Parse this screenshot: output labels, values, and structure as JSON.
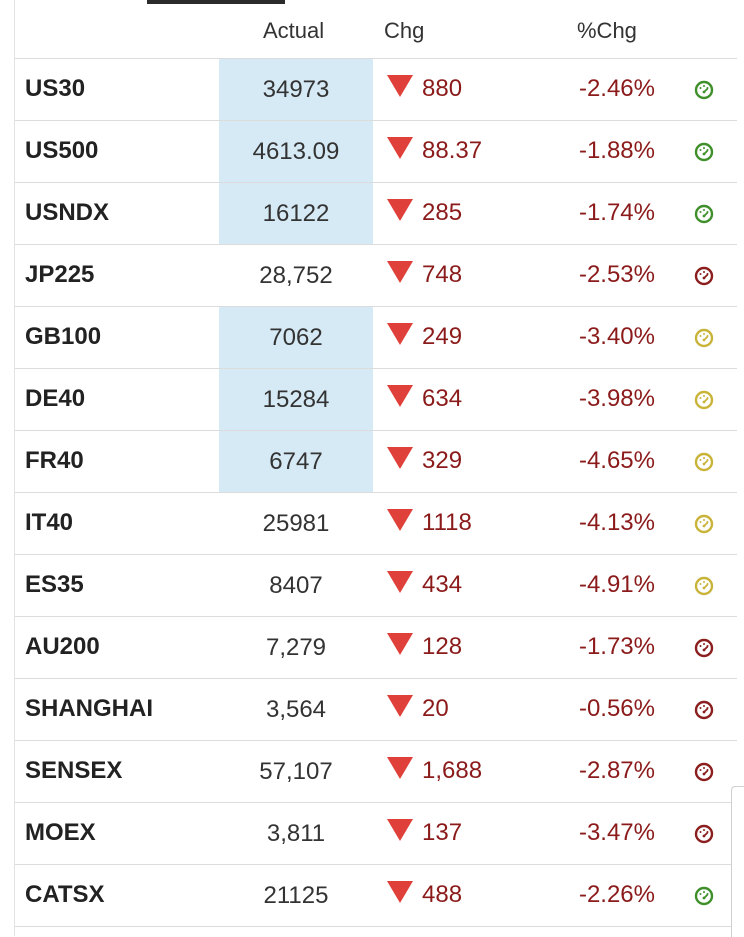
{
  "header": {
    "actual": "Actual",
    "chg": "Chg",
    "pct_chg": "%Chg"
  },
  "colors": {
    "down": "#8b1a1a",
    "arrow": "#e0403a",
    "highlight": "#d6eaf5",
    "gauge_green": "#3f8f2b",
    "gauge_red": "#8b1e1e",
    "gauge_yellow": "#c9b43a"
  },
  "rows": [
    {
      "name": "US30",
      "actual": "34973",
      "chg": "880",
      "pct": "-2.46%",
      "highlight": true,
      "gauge": "green"
    },
    {
      "name": "US500",
      "actual": "4613.09",
      "chg": "88.37",
      "pct": "-1.88%",
      "highlight": true,
      "gauge": "green"
    },
    {
      "name": "USNDX",
      "actual": "16122",
      "chg": "285",
      "pct": "-1.74%",
      "highlight": true,
      "gauge": "green"
    },
    {
      "name": "JP225",
      "actual": "28,752",
      "chg": "748",
      "pct": "-2.53%",
      "highlight": false,
      "gauge": "red"
    },
    {
      "name": "GB100",
      "actual": "7062",
      "chg": "249",
      "pct": "-3.40%",
      "highlight": true,
      "gauge": "yellow"
    },
    {
      "name": "DE40",
      "actual": "15284",
      "chg": "634",
      "pct": "-3.98%",
      "highlight": true,
      "gauge": "yellow"
    },
    {
      "name": "FR40",
      "actual": "6747",
      "chg": "329",
      "pct": "-4.65%",
      "highlight": true,
      "gauge": "yellow"
    },
    {
      "name": "IT40",
      "actual": "25981",
      "chg": "1118",
      "pct": "-4.13%",
      "highlight": false,
      "gauge": "yellow"
    },
    {
      "name": "ES35",
      "actual": "8407",
      "chg": "434",
      "pct": "-4.91%",
      "highlight": false,
      "gauge": "yellow"
    },
    {
      "name": "AU200",
      "actual": "7,279",
      "chg": "128",
      "pct": "-1.73%",
      "highlight": false,
      "gauge": "red"
    },
    {
      "name": "SHANGHAI",
      "actual": "3,564",
      "chg": "20",
      "pct": "-0.56%",
      "highlight": false,
      "gauge": "red"
    },
    {
      "name": "SENSEX",
      "actual": "57,107",
      "chg": "1,688",
      "pct": "-2.87%",
      "highlight": false,
      "gauge": "red"
    },
    {
      "name": "MOEX",
      "actual": "3,811",
      "chg": "137",
      "pct": "-3.47%",
      "highlight": false,
      "gauge": "red"
    },
    {
      "name": "CATSX",
      "actual": "21125",
      "chg": "488",
      "pct": "-2.26%",
      "highlight": false,
      "gauge": "green"
    }
  ]
}
